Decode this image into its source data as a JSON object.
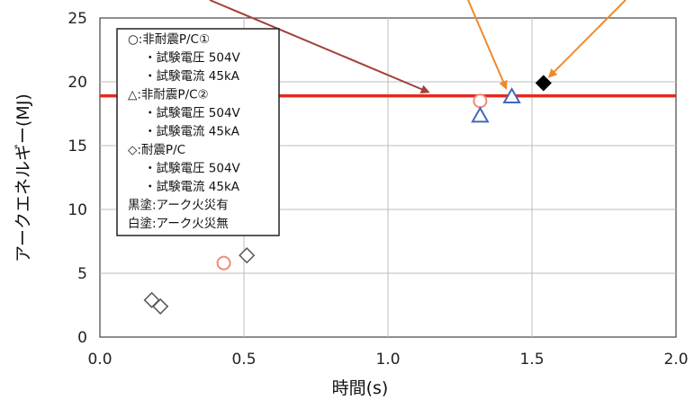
{
  "chart_data": {
    "type": "scatter",
    "xlabel": "時間(s)",
    "ylabel": "アークエネルギー(MJ)",
    "xlim": [
      0.0,
      2.0
    ],
    "ylim": [
      0,
      25
    ],
    "x_ticks": [
      "0.0",
      "0.5",
      "1.0",
      "1.5",
      "2.0"
    ],
    "y_ticks": [
      "0",
      "5",
      "10",
      "15",
      "20",
      "25"
    ],
    "grid": true,
    "reference_line": {
      "y": 18.9,
      "color": "#e8291c"
    },
    "series": [
      {
        "name": "非耐震P/C①",
        "marker": "circle",
        "color": "#f28a78",
        "fill": "none",
        "points": [
          {
            "x": 0.43,
            "y": 5.8
          },
          {
            "x": 1.32,
            "y": 18.5
          }
        ]
      },
      {
        "name": "非耐震P/C②",
        "marker": "triangle",
        "color": "#4468b8",
        "fill": "none",
        "points": [
          {
            "x": 1.32,
            "y": 17.3
          },
          {
            "x": 1.43,
            "y": 18.8
          }
        ]
      },
      {
        "name": "耐震P/C",
        "marker": "diamond",
        "color": "#555555",
        "fill": "none",
        "points": [
          {
            "x": 0.18,
            "y": 2.9
          },
          {
            "x": 0.21,
            "y": 2.4
          },
          {
            "x": 0.51,
            "y": 6.4
          }
        ]
      },
      {
        "name": "耐震P/C (アーク火災有)",
        "marker": "diamond",
        "color": "#000000",
        "fill": "#000000",
        "points": [
          {
            "x": 1.54,
            "y": 19.9
          }
        ]
      }
    ],
    "legend": {
      "placement": "top-left",
      "lines": [
        "○:非耐震P/C①",
        "・試験電圧  504V",
        "・試験電流  45kA",
        "△:非耐震P/C②",
        "・試験電圧  504V",
        "・試験電流  45kA",
        "◇:耐震P/C",
        "・試験電圧  504V",
        "・試験電流  45kA",
        "黒塗:アーク火災有",
        "白塗:アーク火災無"
      ]
    },
    "annotation_arrows": [
      {
        "color": "#a3403a",
        "target": {
          "x": 1.14,
          "y": 19.2
        }
      },
      {
        "color": "#f0892b",
        "target": {
          "x": 1.41,
          "y": 19.5
        }
      },
      {
        "color": "#f0892b",
        "target": {
          "x": 1.56,
          "y": 20.4
        }
      }
    ]
  }
}
